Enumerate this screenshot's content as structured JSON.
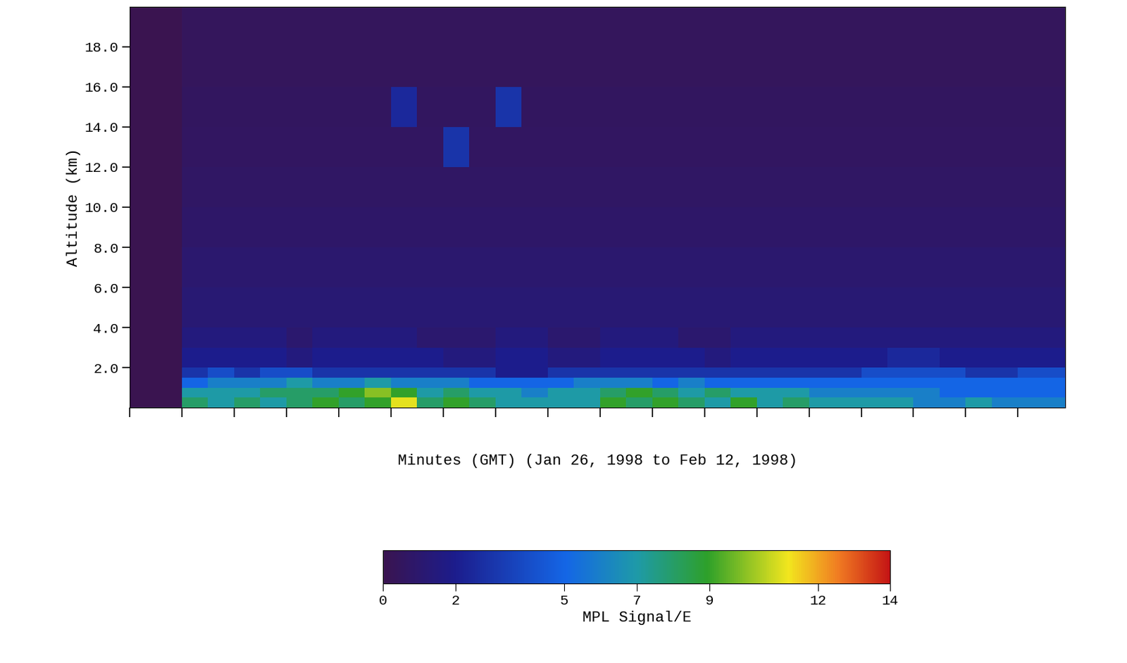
{
  "chart_data": {
    "type": "heatmap",
    "xlabel": "Minutes (GMT) (Jan 26, 1998 to Feb 12, 1998)",
    "ylabel": "Altitude (km)",
    "tick_labels": "y",
    "xlim": [
      0,
      17.9
    ],
    "xticks": [
      0,
      1,
      2,
      3,
      4,
      5,
      6,
      7,
      8,
      9,
      10,
      11,
      12,
      13,
      14,
      15,
      16,
      17
    ],
    "ylim": [
      0,
      20
    ],
    "yticks": [
      {
        "value": 2,
        "label": "2.0"
      },
      {
        "value": 4,
        "label": "4.0"
      },
      {
        "value": 6,
        "label": "6.0"
      },
      {
        "value": 8,
        "label": "8.0"
      },
      {
        "value": 10,
        "label": "10.0"
      },
      {
        "value": 12,
        "label": "12.0"
      },
      {
        "value": 14,
        "label": "14.0"
      },
      {
        "value": 16,
        "label": "16.0"
      },
      {
        "value": 18,
        "label": "18.0"
      }
    ],
    "x_edges": [
      0,
      0.5,
      1,
      1.5,
      2,
      2.5,
      3,
      3.5,
      4,
      4.5,
      5,
      5.5,
      6,
      6.5,
      7,
      7.5,
      8,
      8.5,
      9,
      9.5,
      10,
      10.5,
      11,
      11.5,
      12,
      12.5,
      13,
      13.5,
      14,
      14.5,
      15,
      15.5,
      16,
      16.5,
      17,
      17.5,
      18
    ],
    "y_edges": [
      0,
      0.5,
      1,
      1.5,
      2,
      3,
      4,
      6,
      8,
      10,
      12,
      14,
      16,
      18,
      20
    ],
    "cells": [
      [
        0,
        0,
        8,
        7,
        8,
        7,
        8,
        9,
        8,
        9,
        11,
        8,
        9,
        8,
        7,
        7,
        7,
        7,
        9,
        8,
        9,
        8,
        7,
        9,
        7,
        8,
        7,
        7,
        7,
        7,
        6,
        6,
        7,
        6,
        6,
        6
      ],
      [
        0,
        0,
        7,
        7,
        7,
        8,
        8,
        8,
        9,
        10,
        9,
        7,
        8,
        7,
        7,
        6,
        7,
        7,
        8,
        9,
        8,
        7,
        8,
        7,
        7,
        7,
        6,
        6,
        6,
        6,
        6,
        5,
        5,
        5,
        5,
        5
      ],
      [
        0,
        0,
        5,
        6,
        6,
        6,
        7,
        6,
        6,
        7,
        6,
        6,
        6,
        5,
        5,
        5,
        5,
        6,
        6,
        6,
        5,
        6,
        5,
        5,
        5,
        5,
        5,
        5,
        5,
        5,
        5,
        5,
        5,
        5,
        5,
        5
      ],
      [
        0,
        0,
        3,
        4,
        3,
        4,
        4,
        3,
        3,
        3,
        3,
        3,
        3,
        3,
        2,
        2,
        3,
        3,
        3,
        3,
        3,
        3,
        3,
        3,
        3,
        3,
        3,
        3,
        4,
        4,
        4,
        4,
        3,
        3,
        4,
        4
      ],
      [
        0,
        0,
        2,
        2,
        2,
        2,
        1.5,
        2,
        2,
        2,
        2,
        2,
        1.5,
        1.5,
        2,
        2,
        1.5,
        1.5,
        2,
        2,
        2,
        2,
        1.5,
        2,
        2,
        2,
        2,
        2,
        2,
        2.5,
        2.5,
        2,
        2,
        2,
        2,
        2
      ],
      [
        0,
        0,
        1.5,
        1.5,
        1.5,
        1.5,
        1,
        1.5,
        1.5,
        1.5,
        1.5,
        1,
        1,
        1,
        1.5,
        1.5,
        1,
        1,
        1.5,
        1.5,
        1.5,
        1,
        1,
        1.5,
        1.5,
        1.5,
        1.5,
        1.5,
        1.5,
        1.5,
        1.5,
        1.5,
        1.5,
        1.5,
        1.5,
        1.5
      ],
      [
        0,
        0,
        1.2,
        1.2,
        1.2,
        1.2,
        1.2,
        1.2,
        1.2,
        1.2,
        1.2,
        1.2,
        1.2,
        1.2,
        1.2,
        1.2,
        1.2,
        1.2,
        1.2,
        1.2,
        1.2,
        1.2,
        1.2,
        1.2,
        1.2,
        1.2,
        1.2,
        1.2,
        1.2,
        1.2,
        1.2,
        1.2,
        1.2,
        1.2,
        1.2,
        1.2
      ],
      [
        0,
        0,
        1,
        1,
        1,
        1,
        1,
        1,
        1,
        1,
        1,
        1,
        1,
        1,
        1,
        1,
        1,
        1,
        1,
        1,
        1,
        1,
        1,
        1,
        1,
        1,
        1,
        1,
        1,
        1,
        1,
        1,
        1,
        1,
        1,
        1
      ],
      [
        0,
        0,
        0.8,
        0.8,
        0.8,
        0.8,
        0.8,
        0.8,
        0.8,
        0.8,
        0.8,
        0.8,
        0.8,
        0.8,
        0.8,
        0.8,
        0.8,
        0.8,
        0.8,
        0.8,
        0.8,
        0.8,
        0.8,
        0.8,
        0.8,
        0.8,
        0.8,
        0.8,
        0.8,
        0.8,
        0.8,
        0.8,
        0.8,
        0.8,
        0.8,
        0.8
      ],
      [
        0,
        0,
        0.7,
        0.7,
        0.7,
        0.7,
        0.7,
        0.7,
        0.7,
        0.7,
        0.7,
        0.7,
        0.7,
        0.7,
        0.7,
        0.7,
        0.7,
        0.7,
        0.7,
        0.7,
        0.7,
        0.7,
        0.7,
        0.7,
        0.7,
        0.7,
        0.7,
        0.7,
        0.7,
        0.7,
        0.7,
        0.7,
        0.7,
        0.7,
        0.7,
        0.7
      ],
      [
        0,
        0,
        0.6,
        0.6,
        0.6,
        0.6,
        0.6,
        0.6,
        0.6,
        0.6,
        0.6,
        0.6,
        3,
        0.6,
        0.6,
        0.6,
        0.6,
        0.6,
        0.6,
        0.6,
        0.6,
        0.6,
        0.6,
        0.6,
        0.6,
        0.6,
        0.6,
        0.6,
        0.6,
        0.6,
        0.6,
        0.6,
        0.6,
        0.6,
        0.6,
        0.6
      ],
      [
        0,
        0,
        0.5,
        0.5,
        0.5,
        0.5,
        0.5,
        0.5,
        0.5,
        0.5,
        2.5,
        0.5,
        0.5,
        0.5,
        3,
        0.5,
        0.5,
        0.5,
        0.5,
        0.5,
        0.5,
        0.5,
        0.5,
        0.5,
        0.5,
        0.5,
        0.5,
        0.5,
        0.5,
        0.5,
        0.5,
        0.5,
        0.5,
        0.5,
        0.5,
        0.5
      ],
      [
        0,
        0,
        0.4,
        0.4,
        0.4,
        0.4,
        0.4,
        0.4,
        0.4,
        0.4,
        0.4,
        0.4,
        0.4,
        0.4,
        0.4,
        0.4,
        0.4,
        0.4,
        0.4,
        0.4,
        0.4,
        0.4,
        0.4,
        0.4,
        0.4,
        0.4,
        0.4,
        0.4,
        0.4,
        0.4,
        0.4,
        0.4,
        0.4,
        0.4,
        0.4,
        0.4
      ],
      [
        0,
        0,
        0.4,
        0.4,
        0.4,
        0.4,
        0.4,
        0.4,
        0.4,
        0.4,
        0.4,
        0.4,
        0.4,
        0.4,
        0.4,
        0.4,
        0.4,
        0.4,
        0.4,
        0.4,
        0.4,
        0.4,
        0.4,
        0.4,
        0.4,
        0.4,
        0.4,
        0.4,
        0.4,
        0.4,
        0.4,
        0.4,
        0.4,
        0.4,
        0.4,
        0.4
      ]
    ],
    "colorbar_label": "MPL Signal/E",
    "colorbar_range": [
      0,
      14
    ],
    "colorbar_ticks": [
      0,
      2,
      5,
      7,
      9,
      12,
      14
    ]
  }
}
